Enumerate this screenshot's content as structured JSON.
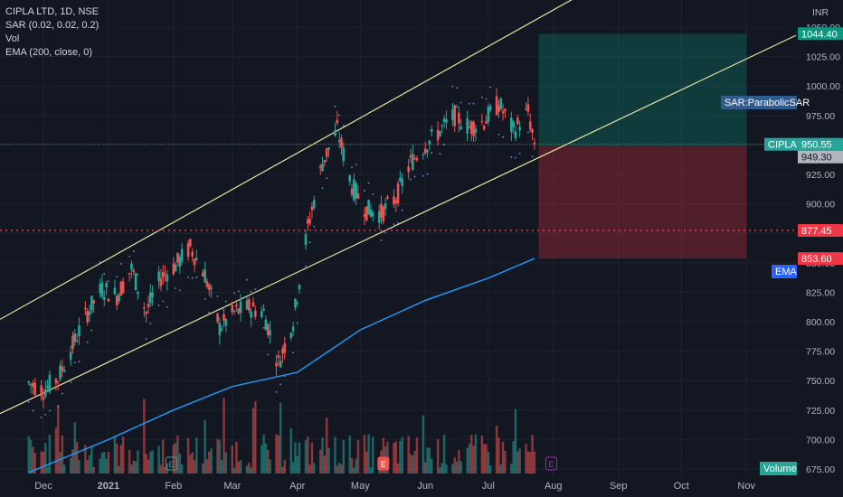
{
  "header": {
    "title": "CIPLA LTD, 1D, NSE",
    "indicators": [
      "SAR (0.02, 0.02, 0.2)",
      "Vol",
      "EMA (200, close, 0)"
    ]
  },
  "currency": "INR",
  "price_labels": {
    "last": {
      "text": "950.55",
      "prefix": "CIPLA",
      "color": "#26a69a"
    },
    "close_ref": {
      "text": "949.30",
      "color": "#b2b5be"
    },
    "target": {
      "text": "1044.40",
      "color": "#089981"
    },
    "support": {
      "text": "877.45",
      "color": "#f23645"
    },
    "stop": {
      "text": "853.60",
      "color": "#f23645"
    },
    "sar": {
      "text": "SAR:ParabolicSAR",
      "color": "#2f5b8f"
    },
    "ema": {
      "text": "EMA",
      "color": "#2962ff"
    },
    "volume": {
      "text": "Volume",
      "color": "#26a69a"
    }
  },
  "event_markers": [
    "E",
    "E",
    "E"
  ],
  "chart_data": {
    "type": "candlestick",
    "symbol": "CIPLA LTD",
    "interval": "1D",
    "exchange": "NSE",
    "x_tick_labels": [
      "Dec",
      "2021",
      "Feb",
      "Mar",
      "Apr",
      "May",
      "Jun",
      "Jul",
      "Aug",
      "Sep",
      "Oct",
      "Nov"
    ],
    "y_tick_labels": [
      "675.00",
      "700.00",
      "725.00",
      "750.00",
      "775.00",
      "800.00",
      "825.00",
      "850.00",
      "875.00",
      "900.00",
      "925.00",
      "950.00",
      "975.00",
      "1000.00",
      "1025.00",
      "1050.00"
    ],
    "ylim": [
      672,
      1064
    ],
    "close_series": [
      {
        "date": "2020-11-24",
        "close": 748
      },
      {
        "date": "2020-12-01",
        "close": 742
      },
      {
        "date": "2020-12-08",
        "close": 752
      },
      {
        "date": "2020-12-15",
        "close": 780
      },
      {
        "date": "2020-12-22",
        "close": 808
      },
      {
        "date": "2020-12-29",
        "close": 828
      },
      {
        "date": "2021-01-05",
        "close": 822
      },
      {
        "date": "2021-01-12",
        "close": 845
      },
      {
        "date": "2021-01-19",
        "close": 808
      },
      {
        "date": "2021-01-26",
        "close": 838
      },
      {
        "date": "2021-02-02",
        "close": 848
      },
      {
        "date": "2021-02-09",
        "close": 863
      },
      {
        "date": "2021-02-16",
        "close": 840
      },
      {
        "date": "2021-02-23",
        "close": 795
      },
      {
        "date": "2021-03-02",
        "close": 808
      },
      {
        "date": "2021-03-09",
        "close": 812
      },
      {
        "date": "2021-03-16",
        "close": 808
      },
      {
        "date": "2021-03-23",
        "close": 765
      },
      {
        "date": "2021-03-30",
        "close": 800
      },
      {
        "date": "2021-04-06",
        "close": 880
      },
      {
        "date": "2021-04-13",
        "close": 935
      },
      {
        "date": "2021-04-20",
        "close": 963
      },
      {
        "date": "2021-04-27",
        "close": 915
      },
      {
        "date": "2021-05-04",
        "close": 895
      },
      {
        "date": "2021-05-11",
        "close": 892
      },
      {
        "date": "2021-05-18",
        "close": 905
      },
      {
        "date": "2021-05-25",
        "close": 935
      },
      {
        "date": "2021-06-01",
        "close": 950
      },
      {
        "date": "2021-06-08",
        "close": 962
      },
      {
        "date": "2021-06-15",
        "close": 975
      },
      {
        "date": "2021-06-22",
        "close": 965
      },
      {
        "date": "2021-06-29",
        "close": 970
      },
      {
        "date": "2021-07-06",
        "close": 985
      },
      {
        "date": "2021-07-13",
        "close": 962
      },
      {
        "date": "2021-07-20",
        "close": 978
      },
      {
        "date": "2021-07-23",
        "close": 950.55
      }
    ],
    "ema_200": [
      {
        "date": "2020-11-24",
        "value": 672
      },
      {
        "date": "2021-01-01",
        "value": 700
      },
      {
        "date": "2021-02-01",
        "value": 725
      },
      {
        "date": "2021-03-01",
        "value": 745
      },
      {
        "date": "2021-04-01",
        "value": 757
      },
      {
        "date": "2021-05-01",
        "value": 793
      },
      {
        "date": "2021-06-01",
        "value": 818
      },
      {
        "date": "2021-07-01",
        "value": 837
      },
      {
        "date": "2021-07-23",
        "value": 853.6
      }
    ],
    "horizontal_levels": [
      {
        "name": "support",
        "value": 877.45
      },
      {
        "name": "last_price",
        "value": 950.55
      }
    ],
    "channel_lines": [
      {
        "name": "channel_upper",
        "points": [
          [
            0,
            802
          ],
          [
            720,
            1111
          ]
        ]
      },
      {
        "name": "channel_lower",
        "points": [
          [
            0,
            722
          ],
          [
            880,
            1043
          ]
        ]
      }
    ],
    "position_tool": {
      "entry": 949.3,
      "target": 1044.4,
      "stop": 853.6
    },
    "grid": true,
    "legend": "top-left"
  }
}
